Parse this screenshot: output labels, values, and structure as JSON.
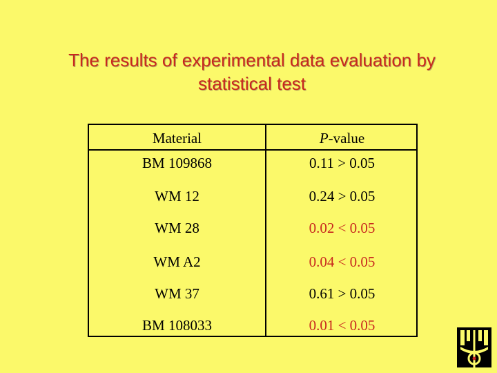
{
  "title": {
    "line1": "The results of experimental data evaluation by",
    "line2": "statistical test"
  },
  "table": {
    "header": {
      "material_label": "Material",
      "pvalue_italic": "P",
      "pvalue_rest": "-value"
    },
    "rows": [
      {
        "material": "BM 109868",
        "pvalue": "0.11 > 0.05"
      },
      {
        "material": "WM 12",
        "pvalue": "0.24 > 0.05"
      },
      {
        "material": "WM 28",
        "pvalue": "0.02 < 0.05"
      },
      {
        "material": "WM A2",
        "pvalue": "0.04 < 0.05"
      },
      {
        "material": "WM 37",
        "pvalue": "0.61 > 0.05"
      },
      {
        "material": "BM 108033",
        "pvalue": "0.01 < 0.05"
      }
    ]
  },
  "colors": {
    "background": "#fbf96a",
    "title": "#c8281e",
    "significant": "#c8281e",
    "text": "#000000"
  },
  "logo": {
    "icon": "institution-logo-icon"
  }
}
